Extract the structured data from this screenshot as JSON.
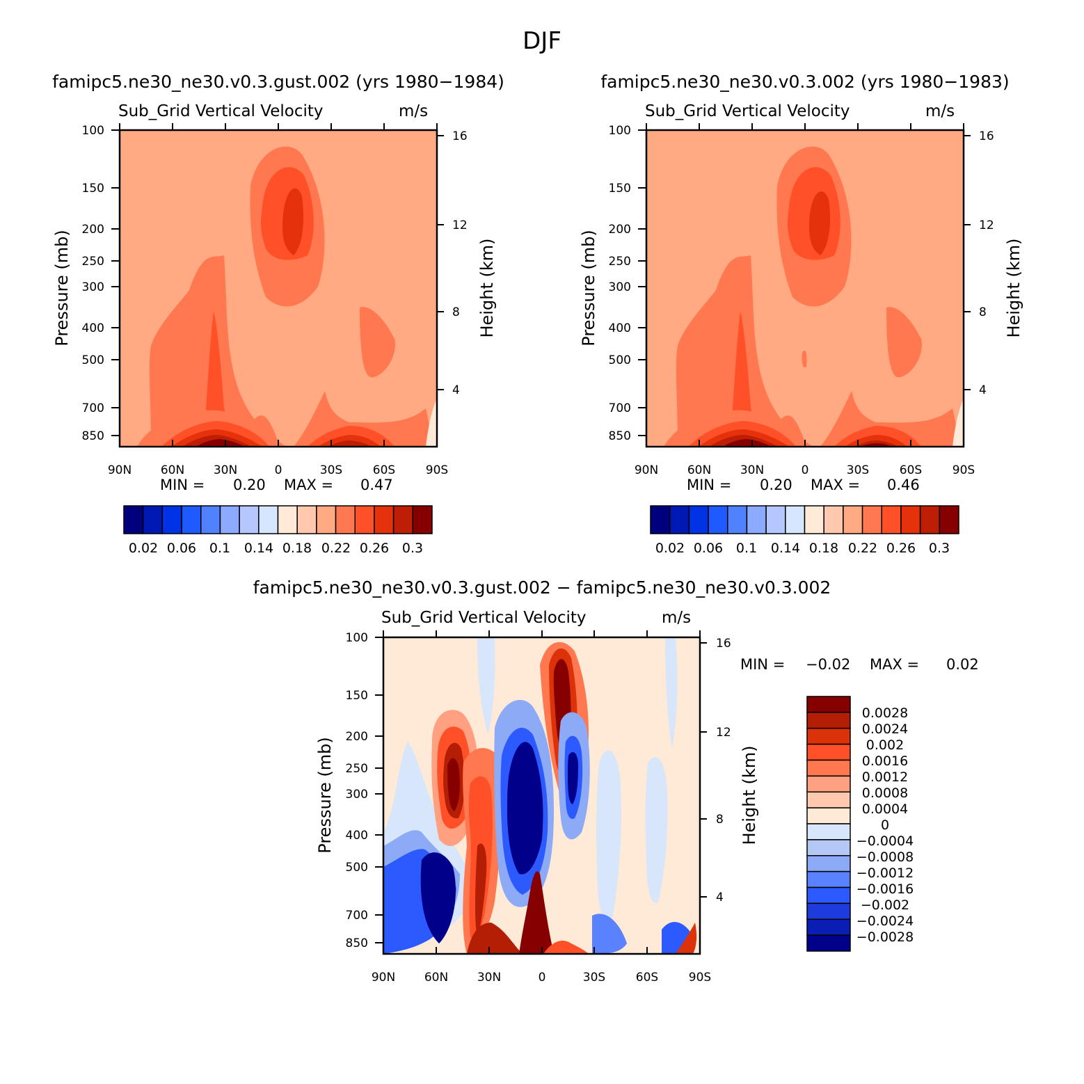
{
  "chart_data": {
    "title": "DJF",
    "colors": {
      "abs": [
        "#00007f",
        "#0019b4",
        "#0032e6",
        "#1e5aff",
        "#5082ff",
        "#8caaff",
        "#b4c8ff",
        "#d7e6ff",
        "#ffe9d7",
        "#ffc8af",
        "#ffaa82",
        "#ff7850",
        "#ff5028",
        "#e6320a",
        "#be1e05",
        "#870000"
      ],
      "diff": [
        "#00008a",
        "#0a1eb4",
        "#1e3cdc",
        "#2d5aff",
        "#5a82ff",
        "#8caaf5",
        "#b4c8f5",
        "#d7e6fa",
        "#ffe9d7",
        "#ffc8af",
        "#ffa080",
        "#ff7850",
        "#ff5028",
        "#dc320a",
        "#b41e05",
        "#870000"
      ]
    },
    "panels": [
      {
        "title": "famipc5.ne30_ne30.v0.3.gust.002 (yrs 1980−1984)",
        "subtitle": "Sub_Grid Vertical Velocity",
        "units": "m/s",
        "type": "contour",
        "ylabel": "Pressure (mb)",
        "y2label": "Height (km)",
        "x_ticks": [
          "90N",
          "60N",
          "30N",
          "0",
          "30S",
          "60S",
          "90S"
        ],
        "y_ticks": [
          "100",
          "150",
          "200",
          "250",
          "300",
          "400",
          "500",
          "700",
          "850"
        ],
        "y2_ticks": [
          "16",
          "12",
          "8",
          "4"
        ],
        "min_label": "MIN =",
        "min": "0.20",
        "max_label": "MAX =",
        "max": "0.47",
        "colorbar_labels": [
          "0.02",
          "0.06",
          "0.1",
          "0.14",
          "0.18",
          "0.22",
          "0.26",
          "0.3"
        ]
      },
      {
        "title": "famipc5.ne30_ne30.v0.3.002 (yrs 1980−1983)",
        "subtitle": "Sub_Grid Vertical Velocity",
        "units": "m/s",
        "type": "contour",
        "ylabel": "Pressure (mb)",
        "y2label": "Height (km)",
        "x_ticks": [
          "90N",
          "60N",
          "30N",
          "0",
          "30S",
          "60S",
          "90S"
        ],
        "y_ticks": [
          "100",
          "150",
          "200",
          "250",
          "300",
          "400",
          "500",
          "700",
          "850"
        ],
        "y2_ticks": [
          "16",
          "12",
          "8",
          "4"
        ],
        "min_label": "MIN =",
        "min": "0.20",
        "max_label": "MAX =",
        "max": "0.46",
        "colorbar_labels": [
          "0.02",
          "0.06",
          "0.1",
          "0.14",
          "0.18",
          "0.22",
          "0.26",
          "0.3"
        ]
      },
      {
        "title": "famipc5.ne30_ne30.v0.3.gust.002 − famipc5.ne30_ne30.v0.3.002",
        "subtitle": "Sub_Grid Vertical Velocity",
        "units": "m/s",
        "type": "contour",
        "ylabel": "Pressure (mb)",
        "y2label": "Height (km)",
        "x_ticks": [
          "90N",
          "60N",
          "30N",
          "0",
          "30S",
          "60S",
          "90S"
        ],
        "y_ticks": [
          "100",
          "150",
          "200",
          "250",
          "300",
          "400",
          "500",
          "700",
          "850"
        ],
        "y2_ticks": [
          "16",
          "12",
          "8",
          "4"
        ],
        "min_label": "MIN =",
        "min": "−0.02",
        "max_label": "MAX =",
        "max": "0.02",
        "colorbar_labels": [
          "0.0028",
          "0.0024",
          "0.002",
          "0.0016",
          "0.0012",
          "0.0008",
          "0.0004",
          "0",
          "−0.0004",
          "−0.0008",
          "−0.0012",
          "−0.0016",
          "−0.002",
          "−0.0024",
          "−0.0028"
        ]
      }
    ]
  }
}
